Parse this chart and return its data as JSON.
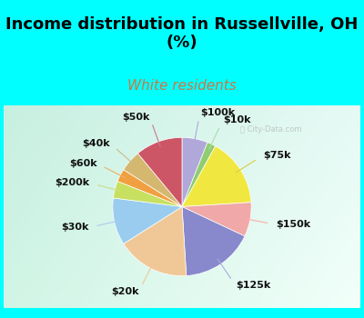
{
  "title": "Income distribution in Russellville, OH\n(%)",
  "subtitle": "White residents",
  "title_color": "#000000",
  "subtitle_color": "#cc7744",
  "bg_color": "#00ffff",
  "chart_bg_topleft": [
    0.78,
    0.94,
    0.88
  ],
  "chart_bg_topright": [
    0.9,
    0.98,
    0.96
  ],
  "chart_bg_botleft": [
    0.82,
    0.96,
    0.9
  ],
  "chart_bg_botright": [
    0.95,
    1.0,
    0.98
  ],
  "labels": [
    "$100k",
    "$10k",
    "$75k",
    "$150k",
    "$125k",
    "$20k",
    "$30k",
    "$200k",
    "$60k",
    "$40k",
    "$50k"
  ],
  "values": [
    6,
    2,
    16,
    8,
    17,
    17,
    11,
    4,
    3,
    5,
    11
  ],
  "colors": [
    "#b0a8d8",
    "#90cc70",
    "#f0e840",
    "#f0a8a8",
    "#8888cc",
    "#f0c898",
    "#99ccee",
    "#c8e060",
    "#f0a040",
    "#d4b870",
    "#cc5566"
  ],
  "line_colors": [
    "#b0a8d8",
    "#aaddaa",
    "#ddcc44",
    "#ffaaaa",
    "#aaaadd",
    "#f0c898",
    "#aaccee",
    "#ccdd88",
    "#f0b060",
    "#ccbb88",
    "#cc7788"
  ],
  "watermark": "City-Data.com",
  "title_fontsize": 13,
  "subtitle_fontsize": 11,
  "label_fontsize": 8
}
